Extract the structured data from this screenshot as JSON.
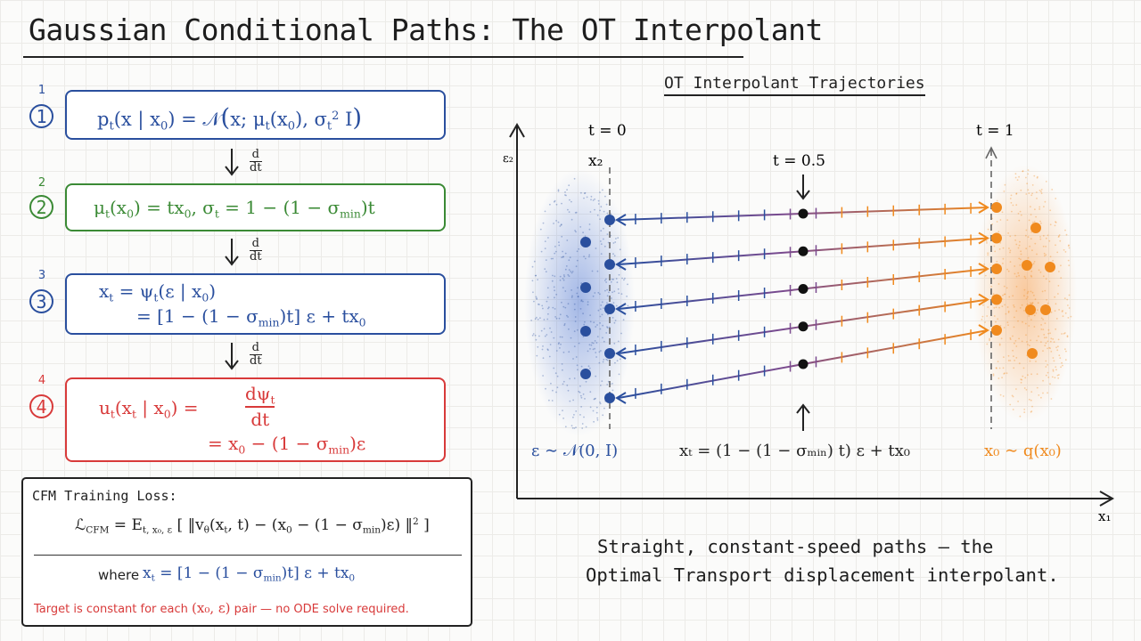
{
  "title": "Gaussian Conditional Paths: The OT Interpolant",
  "steps": [
    {
      "num": "1",
      "circle": "1",
      "color": "#2a4f9e",
      "parts": {
        "p": "p",
        "t": "t",
        "open": "(x | x",
        "zero": "0",
        "close": ") = 𝒩",
        "big_open": "(",
        "x": "x; μ",
        "t2": "t",
        "x0": "(x",
        "zero2": "0",
        "comma": "), σ",
        "t3": "t",
        "two": "2",
        "I": " I",
        "big_close": ")"
      }
    },
    {
      "num": "2",
      "circle": "2",
      "color": "#3b8a35",
      "parts": {
        "mu": "μ",
        "t": "t",
        "x": "(x",
        "zero": "0",
        "eq": ") = tx",
        "zero2": "0",
        "sig": ",   σ",
        "t2": "t",
        "rest": " = 1 − (1 − σ",
        "min": "min",
        "end": ")t"
      }
    },
    {
      "num": "3",
      "circle": "3",
      "color": "#2a4f9e",
      "line1": {
        "x": "x",
        "t": "t",
        "eq": " = ψ",
        "t2": "t",
        "rest": "(ε | x",
        "zero": "0",
        "end": ")"
      },
      "line2": {
        "eq": "= [1 − (1 − σ",
        "min": "min",
        "rest": ")t] ε + tx",
        "zero": "0"
      }
    },
    {
      "num": "4",
      "circle": "4",
      "color": "#d83a3a",
      "line1": {
        "u": "u",
        "t": "t",
        "open": "(x",
        "t2": "t",
        "mid": " | x",
        "zero": "0",
        "close": ") = ",
        "num": "dψ",
        "t3": "t",
        "den": "dt"
      },
      "line2": {
        "eq": "= x",
        "zero": "0",
        "rest": " − (1 − σ",
        "min": "min",
        "end": ")ε"
      }
    }
  ],
  "arrows": [
    {
      "d": "d",
      "dt": "dt"
    },
    {
      "d": "d",
      "dt": "dt"
    },
    {
      "d": "d",
      "dt": "dt"
    }
  ],
  "loss": {
    "heading": "CFM Training Loss:",
    "formula": {
      "L": "ℒ",
      "cfm": "CFM",
      "eq": " = E",
      "sub": "t, x₀, ε",
      "open": " [ ‖v",
      "theta": "θ",
      "args": "(x",
      "t": "t",
      "close": ", t) − (x",
      "zero": "0",
      "rest": " − (1 − σ",
      "min": "min",
      "end": ")ε) ‖",
      "sq": "2",
      "final": " ]"
    },
    "where_label": "where",
    "where": {
      "x": "x",
      "t": "t",
      "eq": " = [1 − (1 − σ",
      "min": "min",
      "rest": ")t] ε + tx",
      "zero": "0"
    },
    "note_pre": "Target is constant for each",
    "note_pair": "(x₀, ε)",
    "note_post": "pair — no ODE solve required."
  },
  "plot": {
    "title": "OT Interpolant Trajectories",
    "y_axis_label": "ε₂",
    "x_axis_label": "x₁",
    "t0_label": "t = 0",
    "t1_label": "t = 1",
    "tmid_label": "t = 0.5",
    "x2_label": "x₂",
    "source_label": "ε ∼ 𝒩(0, I)",
    "target_label": "x₀ ∼ q(x₀)",
    "interp_label": "xₜ = (1 − (1 − σₘᵢₙ) t) ε + tx₀",
    "source_color": "#2a4f9e",
    "target_color": "#f08a1e",
    "n_trajectories": 5,
    "ticks_per_path": 14
  },
  "caption_line1": "Straight, constant-speed paths — the",
  "caption_line2": "Optimal Transport displacement interpolant."
}
